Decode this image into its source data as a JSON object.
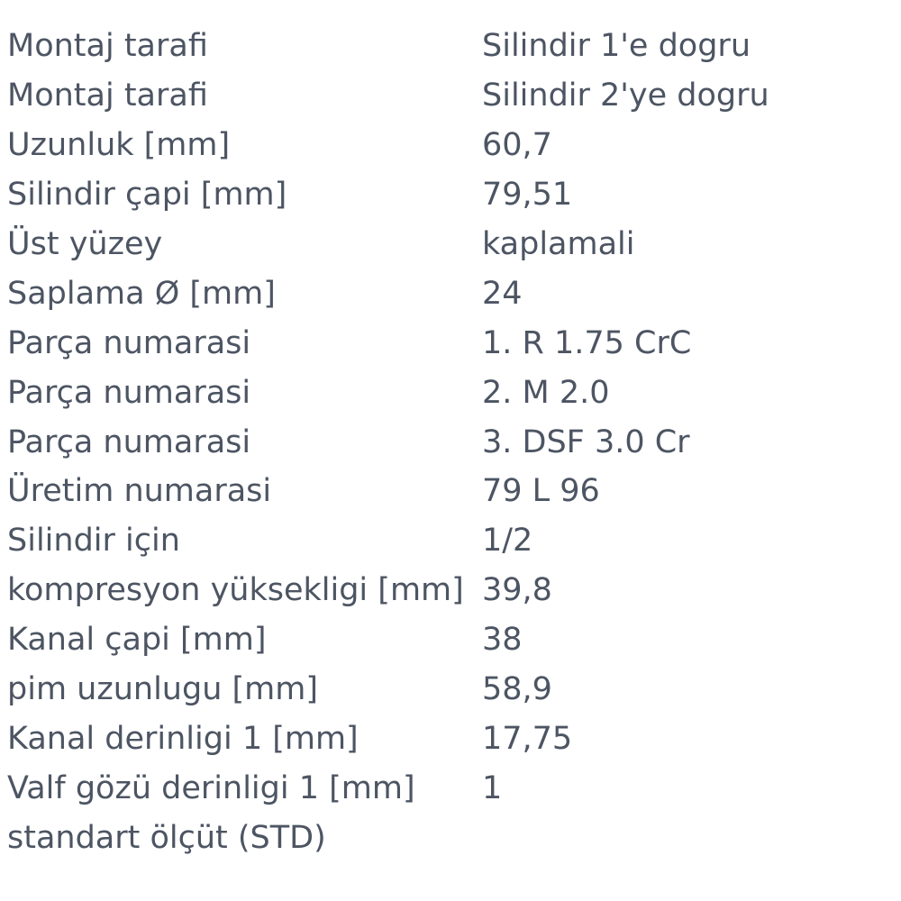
{
  "page": {
    "background_color": "#ffffff",
    "text_color": "#4d5563",
    "language": "Turkish",
    "kind": "product-specification-table"
  },
  "table": {
    "rows": [
      {
        "label": "Montaj tarafi",
        "value": "Silindir 1'e dogru"
      },
      {
        "label": "Montaj tarafi",
        "value": "Silindir 2'ye dogru"
      },
      {
        "label": "Uzunluk [mm]",
        "value": "60,7"
      },
      {
        "label": "Silindir çapi [mm]",
        "value": "79,51"
      },
      {
        "label": "Üst yüzey",
        "value": "kaplamali"
      },
      {
        "label": "Saplama Ø [mm]",
        "value": "24"
      },
      {
        "label": "Parça numarasi",
        "value": "1. R 1.75 CrC"
      },
      {
        "label": "Parça numarasi",
        "value": "2. M 2.0"
      },
      {
        "label": "Parça numarasi",
        "value": "3. DSF 3.0 Cr"
      },
      {
        "label": "Üretim numarasi",
        "value": "79 L 96"
      },
      {
        "label": "Silindir için",
        "value": "1/2"
      },
      {
        "label": "kompresyon yüksekligi [mm]",
        "value": "39,8"
      },
      {
        "label": "Kanal çapi [mm]",
        "value": "38"
      },
      {
        "label": "pim uzunlugu [mm]",
        "value": "58,9"
      },
      {
        "label": "Kanal derinligi 1 [mm]",
        "value": "17,75"
      },
      {
        "label": "Valf gözü derinligi 1 [mm]",
        "value": "1"
      },
      {
        "label": "standart ölçüt (STD)",
        "value": ""
      }
    ]
  }
}
